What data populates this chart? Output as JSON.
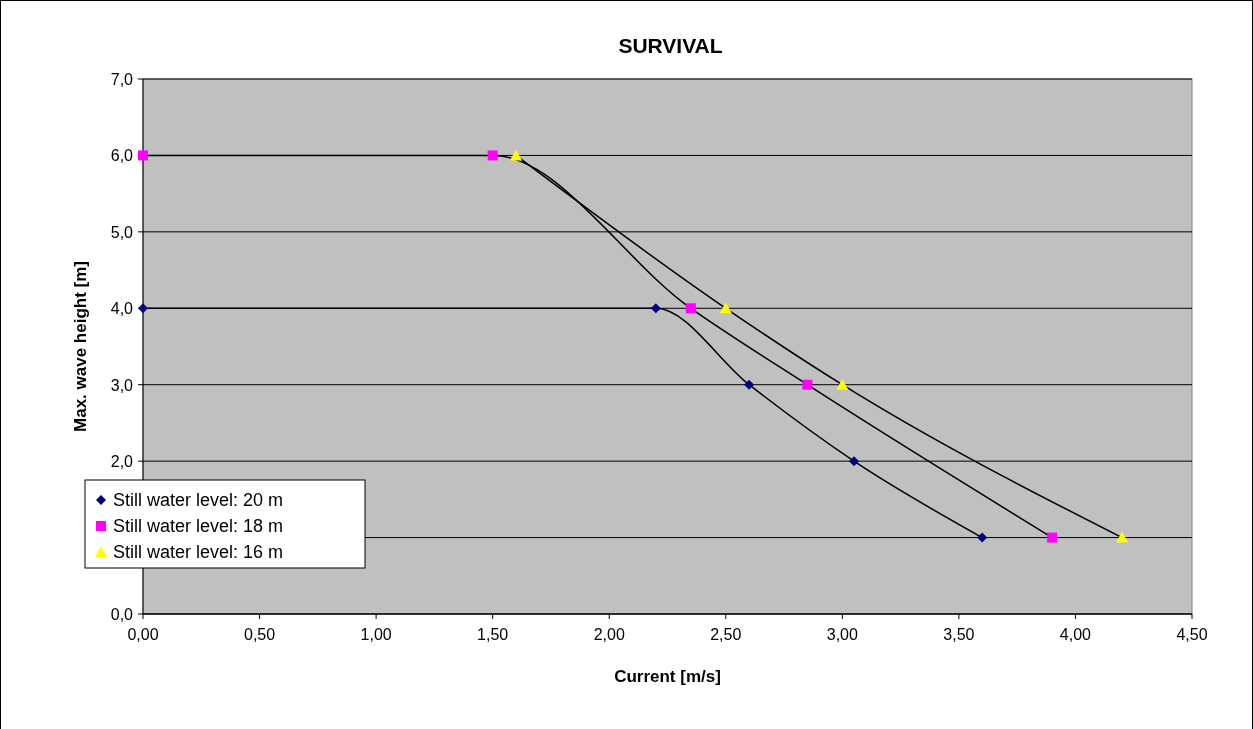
{
  "chart_data": {
    "type": "line",
    "title": "SURVIVAL",
    "xlabel": "Current [m/s]",
    "ylabel": "Max. wave height [m]",
    "xlim": [
      0,
      4.5
    ],
    "ylim": [
      0,
      7
    ],
    "xticks": [
      {
        "value": 0,
        "label": "0,00"
      },
      {
        "value": 0.5,
        "label": "0,50"
      },
      {
        "value": 1,
        "label": "1,00"
      },
      {
        "value": 1.5,
        "label": "1,50"
      },
      {
        "value": 2,
        "label": "2,00"
      },
      {
        "value": 2.5,
        "label": "2,50"
      },
      {
        "value": 3,
        "label": "3,00"
      },
      {
        "value": 3.5,
        "label": "3,50"
      },
      {
        "value": 4,
        "label": "4,00"
      },
      {
        "value": 4.5,
        "label": "4,50"
      }
    ],
    "yticks": [
      {
        "value": 0,
        "label": "0,0"
      },
      {
        "value": 1,
        "label": null
      },
      {
        "value": 2,
        "label": "2,0"
      },
      {
        "value": 3,
        "label": "3,0"
      },
      {
        "value": 4,
        "label": "4,0"
      },
      {
        "value": 5,
        "label": "5,0"
      },
      {
        "value": 6,
        "label": "6,0"
      },
      {
        "value": 7,
        "label": "7,0"
      }
    ],
    "grid": "y",
    "legend": "bottom left",
    "series": [
      {
        "name": "Still water level: 20 m",
        "color": "#000080",
        "marker": "diamond",
        "x": [
          0,
          2.2,
          2.6,
          3.05,
          3.6
        ],
        "values": [
          4,
          4,
          3,
          2,
          1
        ]
      },
      {
        "name": "Still water level: 18 m",
        "color": "#ff00ff",
        "marker": "square",
        "x": [
          0,
          1.5,
          2.35,
          2.85,
          3.9
        ],
        "values": [
          6,
          6,
          4,
          3,
          1
        ]
      },
      {
        "name": "Still water level: 16 m",
        "color": "#ffff00",
        "marker": "triangle",
        "x": [
          1.6,
          2.5,
          3.0,
          4.2
        ],
        "values": [
          6,
          4,
          3,
          1
        ]
      }
    ]
  }
}
